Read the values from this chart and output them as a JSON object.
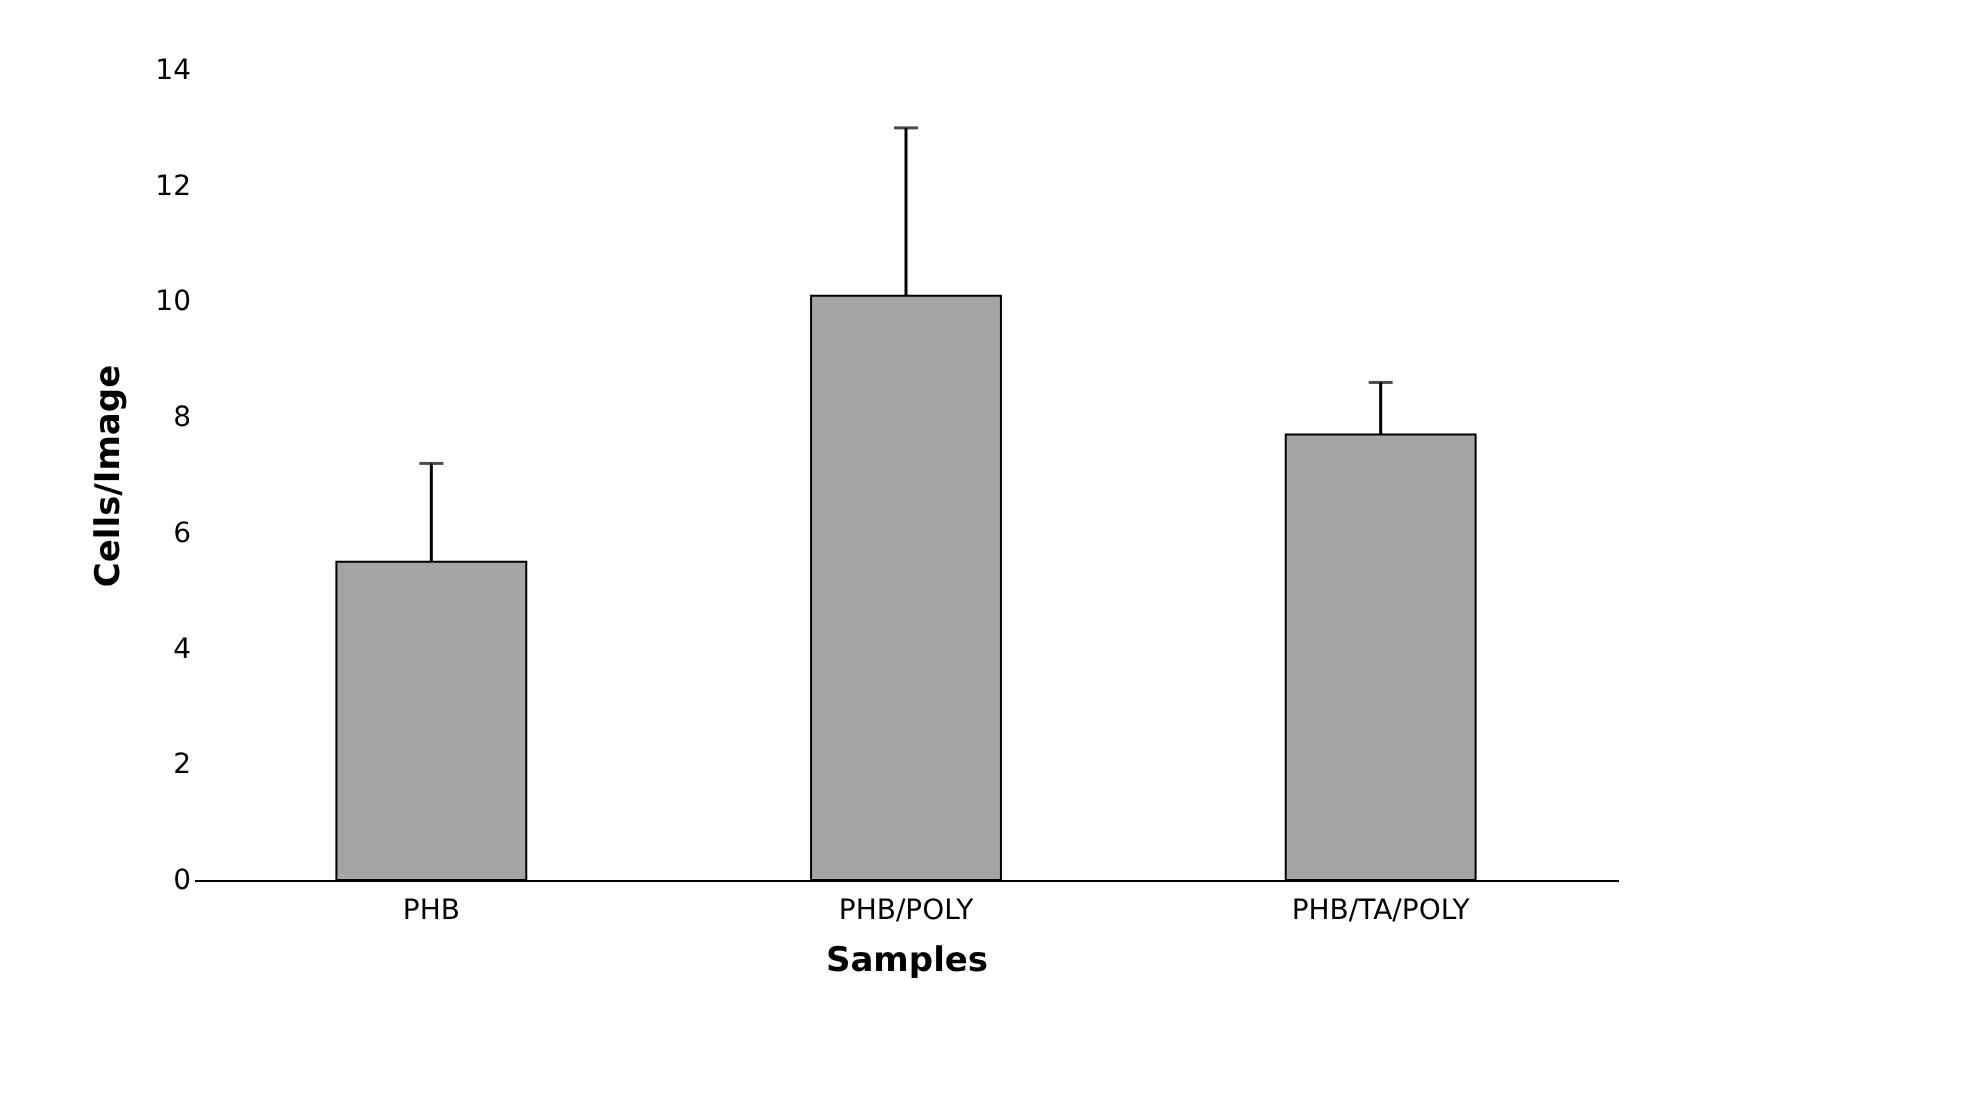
{
  "chart_data": {
    "type": "bar",
    "xlabel": "Samples",
    "ylabel": "Cells/Image",
    "categories": [
      "PHB",
      "PHB/POLY",
      "PHB/TA/POLY"
    ],
    "values": [
      5.5,
      10.1,
      7.7
    ],
    "color": "#a5a5a5",
    "errors": [
      [
        5.5,
        7.2
      ],
      [
        10.1,
        13.0
      ],
      [
        7.7,
        8.6
      ]
    ],
    "ylim": [
      0,
      14
    ],
    "yticks": [
      0,
      2,
      4,
      6,
      8,
      10,
      12,
      14
    ],
    "grid": false
  }
}
